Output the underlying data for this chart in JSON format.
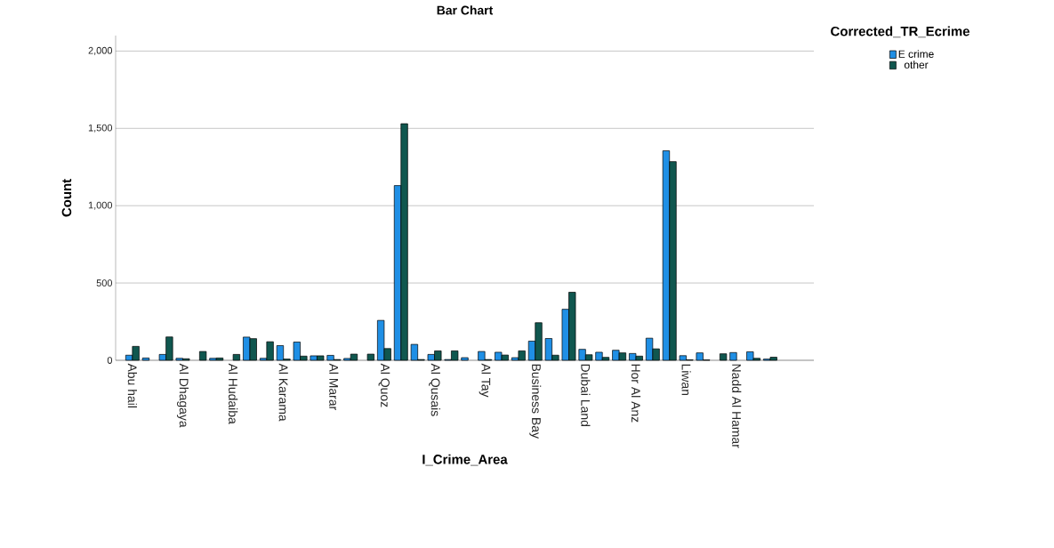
{
  "chart_data": {
    "type": "bar",
    "title": "Bar Chart",
    "xlabel": "I_Crime_Area",
    "ylabel": "Count",
    "legend_title": "Corrected_TR_Ecrime",
    "categories": [
      "Abu hail",
      null,
      null,
      "Al Dhagaya",
      null,
      null,
      "Al Hudaiba",
      null,
      null,
      "Al Karama",
      null,
      null,
      "Al Marar",
      null,
      null,
      "Al Quoz",
      null,
      null,
      "Al Qusais",
      null,
      null,
      "Al Tay",
      null,
      null,
      "Business Bay",
      null,
      null,
      "Dubai Land",
      null,
      null,
      "Hor Al Anz",
      null,
      null,
      "Liwan",
      null,
      null,
      "Nadd Al Hamar",
      null,
      null
    ],
    "series": [
      {
        "name": "E crime",
        "color": "#1f8fe5",
        "values": [
          33,
          15,
          38,
          13,
          null,
          13,
          null,
          150,
          13,
          95,
          118,
          29,
          32,
          12,
          null,
          258,
          1130,
          103,
          38,
          5,
          17,
          57,
          52,
          17,
          124,
          141,
          330,
          71,
          52,
          65,
          44,
          143,
          1355,
          30,
          48,
          null,
          50,
          55,
          8
        ]
      },
      {
        "name": "other",
        "color": "#10574f",
        "values": [
          90,
          null,
          151,
          10,
          57,
          15,
          38,
          140,
          120,
          8,
          27,
          29,
          5,
          40,
          40,
          76,
          1530,
          5,
          61,
          61,
          null,
          5,
          34,
          61,
          243,
          33,
          440,
          36,
          19,
          48,
          27,
          74,
          1285,
          3,
          2,
          42,
          null,
          13,
          20
        ]
      }
    ],
    "ylim": [
      0,
      2100
    ],
    "yticks": [
      0,
      500,
      {
        "value": 1000,
        "label": "1,000"
      },
      {
        "value": 1500,
        "label": "1,500"
      },
      {
        "value": 2000,
        "label": "2,000"
      }
    ],
    "grid": "y",
    "legend": "right"
  }
}
